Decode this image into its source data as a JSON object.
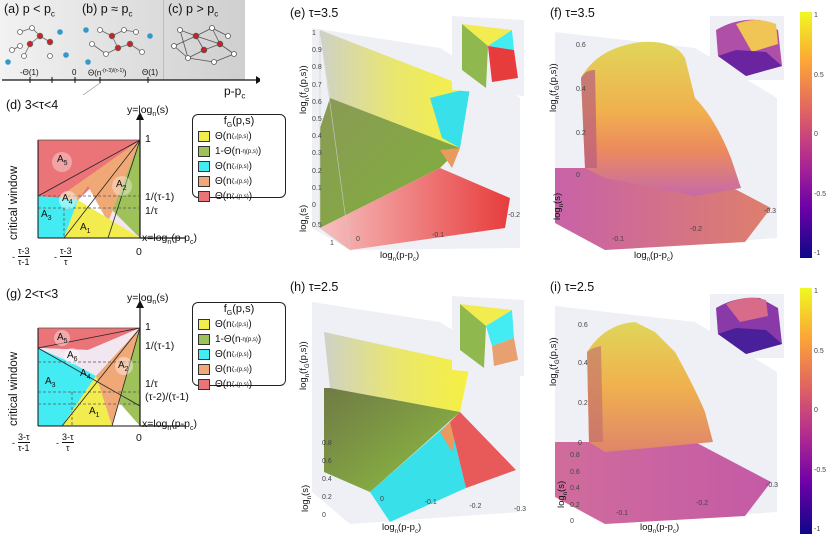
{
  "top": {
    "panel_a": "(a) p < p",
    "panel_a_sub": "c",
    "panel_b": "(b) p ≈ p",
    "panel_b_sub": "c",
    "panel_c": "(c) p > p",
    "panel_c_sub": "c",
    "axis_label": "p-p",
    "axis_label_sub": "c",
    "ticks": [
      "-Θ(1)",
      "0",
      "Θ(n",
      "Θ(1)"
    ],
    "tick_sup": "-(τ-3)/(τ-1)"
  },
  "colors": {
    "yellow": "#f2ec4f",
    "green": "#9fc15a",
    "cyan": "#43ecf2",
    "orange": "#f0a877",
    "red": "#ea7477",
    "region_gray": "#cccccc"
  },
  "panel_d": {
    "title": "(d) 3<τ<4",
    "ylab": "y=log",
    "ylab2": "(s)",
    "xlab": "x=log",
    "xlab2": "(p-p",
    "xlab3": ")",
    "one": "1",
    "zero": "0",
    "r1": "1/(τ-1)",
    "r2": "1/τ",
    "critical": "critical window",
    "areas": [
      "A",
      "A",
      "A",
      "A",
      "A"
    ],
    "area_idx": [
      "5",
      "2",
      "4",
      "3",
      "1"
    ],
    "xt1_num": "τ-3",
    "xt1_den": "τ-1",
    "xt2_num": "τ-3",
    "xt2_den": "τ",
    "minus": "-",
    "n_sub": "n"
  },
  "panel_g": {
    "title": "(g) 2<τ<3",
    "ylab": "y=log",
    "ylab2": "(s)",
    "xlab": "x=log",
    "xlab2": "(p-p",
    "xlab3": ")",
    "one": "1",
    "zero": "0",
    "r1": "1/(τ-1)",
    "r2": "1/τ",
    "r3": "(τ-2)/(τ-1)",
    "critical": "critical window",
    "areas": [
      "A",
      "A",
      "A",
      "A",
      "A",
      "A"
    ],
    "area_idx": [
      "5",
      "6",
      "2",
      "3",
      "4",
      "1"
    ],
    "xt1_num": "3-τ",
    "xt1_den": "τ-1",
    "xt2_num": "3-τ",
    "xt2_den": "τ",
    "minus": "-",
    "n_sub": "n"
  },
  "legend": {
    "title": "f",
    "title_sub": "G",
    "title_rest": "(p,s)",
    "rows": [
      "Θ(n",
      "1-Θ(n",
      "Θ(n",
      "Θ(n",
      "Θ(n"
    ],
    "sups": [
      "ζ₁(p,s)",
      "-η(p,s)",
      "ζ₂(p,s)",
      "ζ₃(p,s)",
      "ζ₄(p,s)"
    ],
    "close": ")"
  },
  "plots": {
    "e": {
      "title": "(e) τ=3.5"
    },
    "f": {
      "title": "(f) τ=3.5"
    },
    "h": {
      "title": "(h) τ=2.5"
    },
    "i": {
      "title": "(i) τ=2.5"
    },
    "z_label_e": "log",
    "z_label_f": "log",
    "x_label": "log",
    "y_label": "log",
    "e_xticks": [
      "0",
      "-0.1",
      "-0.2"
    ],
    "e_yticks": [
      "0.5",
      "1"
    ],
    "e_zticks": [
      "1",
      "0.9",
      "0.8",
      "0.7",
      "0.6",
      "0.5",
      "0.4",
      "0.3",
      "0.2",
      "0.1",
      "0"
    ],
    "f_zticks": [
      "0.6",
      "0.4",
      "0.2",
      "0"
    ],
    "f_xticks": [
      "-0.1",
      "-0.2",
      "-0.3"
    ],
    "h_yticks": [
      "0.8",
      "0.6",
      "0.4",
      "0.2",
      "0"
    ],
    "h_xticks": [
      "0",
      "-0.1",
      "-0.2",
      "-0.3"
    ],
    "i_zticks": [
      "0.6",
      "0.4",
      "0.2",
      "0"
    ],
    "i_yticks": [
      "0.8",
      "0.6",
      "0.4",
      "0.2",
      "0"
    ],
    "i_xticks": [
      "-0.1",
      "-0.2",
      "-0.3"
    ]
  },
  "colorbar": {
    "ticks": [
      "1",
      "0.5",
      "0",
      "-0.5",
      "-1"
    ]
  }
}
